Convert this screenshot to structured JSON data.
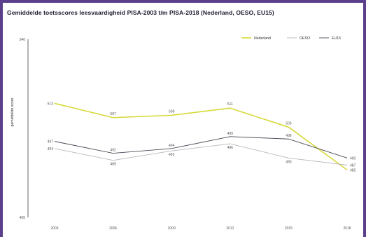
{
  "chart_data": {
    "type": "line",
    "title": "Gemiddelde toetsscores leesvaardigheid PISA-2003 t/m PISA-2018 (Nederland, OESO, EU15)",
    "ylabel": "gemiddelde score",
    "xlabel": "",
    "categories": [
      "2003",
      "2006",
      "2009",
      "2012",
      "2015",
      "2018"
    ],
    "ylim": [
      465,
      540
    ],
    "yticks": [
      "540",
      "465"
    ],
    "legend_position": "top-right",
    "series": [
      {
        "name": "Nederland",
        "color": "#d6d93a",
        "values": [
          513,
          507,
          508,
          511,
          503,
          485
        ]
      },
      {
        "name": "OESO",
        "color": "#b8b8bd",
        "values": [
          494,
          489,
          493,
          496,
          490,
          487
        ]
      },
      {
        "name": "EU15",
        "color": "#4a4a57",
        "values": [
          497,
          492,
          494,
          499,
          498,
          490
        ]
      }
    ],
    "data_labels": [
      [
        "513",
        "507",
        "508",
        "511",
        "503",
        "485"
      ],
      [
        "494",
        "489",
        "493",
        "496",
        "490",
        "487"
      ],
      [
        "497",
        "492",
        "494",
        "499",
        "498",
        "490"
      ]
    ]
  }
}
